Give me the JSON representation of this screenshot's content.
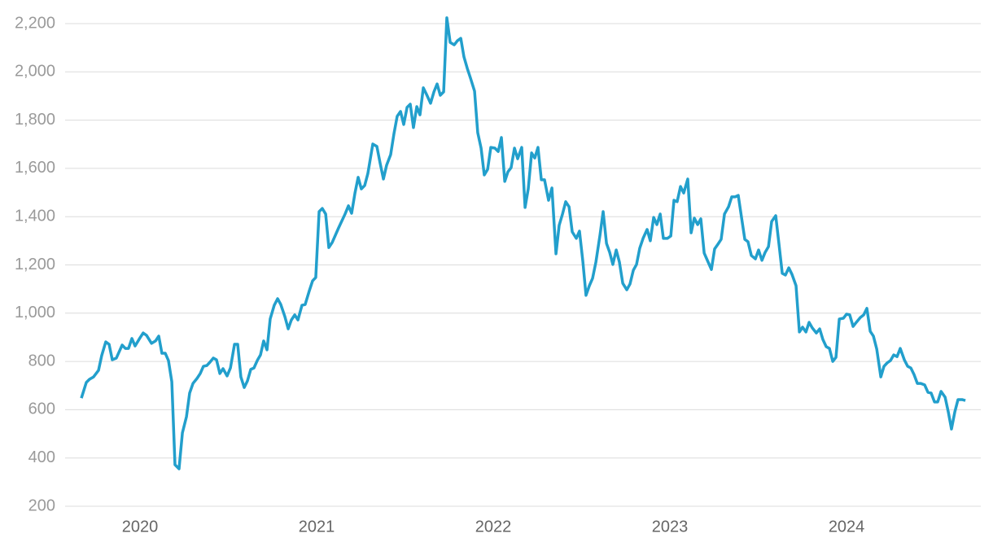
{
  "chart_data": {
    "type": "line",
    "color": "#229fcc",
    "grid": true,
    "xlim": [
      2019.576,
      2024.76
    ],
    "xticks": [
      2020,
      2021,
      2022,
      2023,
      2024
    ],
    "ylim": [
      200,
      2200
    ],
    "yticks": [
      200,
      400,
      600,
      800,
      {
        "value": 1000,
        "label": "1,000"
      },
      {
        "value": 1200,
        "label": "1,200"
      },
      {
        "value": 1400,
        "label": "1,400"
      },
      {
        "value": 1600,
        "label": "1,600"
      },
      {
        "value": 1800,
        "label": "1,800"
      },
      {
        "value": 2000,
        "label": "2,000"
      },
      {
        "value": 2200,
        "label": "2,200"
      }
    ],
    "x": [
      2019.668,
      2019.696,
      2019.714,
      2019.737,
      2019.765,
      2019.783,
      2019.806,
      2019.825,
      2019.843,
      2019.866,
      2019.899,
      2019.917,
      2019.935,
      2019.954,
      2019.972,
      2020.0,
      2020.018,
      2020.037,
      2020.065,
      2020.088,
      2020.106,
      2020.124,
      2020.143,
      2020.161,
      2020.18,
      2020.198,
      2020.221,
      2020.24,
      2020.263,
      2020.281,
      2020.3,
      2020.323,
      2020.341,
      2020.359,
      2020.378,
      2020.396,
      2020.415,
      2020.433,
      2020.452,
      2020.47,
      2020.493,
      2020.512,
      2020.535,
      2020.553,
      2020.571,
      2020.59,
      2020.608,
      2020.627,
      2020.645,
      2020.664,
      2020.682,
      2020.7,
      2020.719,
      2020.737,
      2020.76,
      2020.779,
      2020.797,
      2020.82,
      2020.839,
      2020.857,
      2020.876,
      2020.894,
      2020.917,
      2020.935,
      2020.959,
      2020.977,
      2020.995,
      2021.014,
      2021.032,
      2021.051,
      2021.069,
      2021.088,
      2021.124,
      2021.161,
      2021.18,
      2021.198,
      2021.217,
      2021.235,
      2021.253,
      2021.272,
      2021.29,
      2021.318,
      2021.341,
      2021.359,
      2021.378,
      2021.396,
      2021.419,
      2021.438,
      2021.456,
      2021.475,
      2021.493,
      2021.512,
      2021.53,
      2021.548,
      2021.567,
      2021.585,
      2021.604,
      2021.622,
      2021.645,
      2021.664,
      2021.682,
      2021.7,
      2021.719,
      2021.737,
      2021.756,
      2021.779,
      2021.797,
      2021.816,
      2021.834,
      2021.853,
      2021.871,
      2021.894,
      2021.912,
      2021.931,
      2021.949,
      2021.968,
      2021.986,
      2022.009,
      2022.028,
      2022.046,
      2022.065,
      2022.083,
      2022.101,
      2022.12,
      2022.138,
      2022.161,
      2022.18,
      2022.198,
      2022.217,
      2022.235,
      2022.253,
      2022.272,
      2022.29,
      2022.313,
      2022.332,
      2022.355,
      2022.373,
      2022.392,
      2022.41,
      2022.429,
      2022.447,
      2022.47,
      2022.488,
      2022.507,
      2022.525,
      2022.544,
      2022.562,
      2022.581,
      2022.604,
      2022.622,
      2022.641,
      2022.659,
      2022.677,
      2022.696,
      2022.714,
      2022.733,
      2022.756,
      2022.774,
      2022.793,
      2022.811,
      2022.829,
      2022.848,
      2022.871,
      2022.889,
      2022.908,
      2022.926,
      2022.945,
      2022.963,
      2022.986,
      2023.005,
      2023.023,
      2023.041,
      2023.06,
      2023.078,
      2023.101,
      2023.12,
      2023.138,
      2023.157,
      2023.175,
      2023.194,
      2023.212,
      2023.235,
      2023.253,
      2023.272,
      2023.29,
      2023.309,
      2023.332,
      2023.35,
      2023.369,
      2023.387,
      2023.406,
      2023.424,
      2023.442,
      2023.461,
      2023.484,
      2023.502,
      2023.521,
      2023.539,
      2023.558,
      2023.576,
      2023.599,
      2023.618,
      2023.636,
      2023.654,
      2023.673,
      2023.691,
      2023.714,
      2023.733,
      2023.751,
      2023.77,
      2023.788,
      2023.806,
      2023.829,
      2023.848,
      2023.866,
      2023.885,
      2023.903,
      2023.922,
      2023.94,
      2023.959,
      2023.982,
      2024.0,
      2024.018,
      2024.037,
      2024.055,
      2024.078,
      2024.097,
      2024.115,
      2024.134,
      2024.152,
      2024.171,
      2024.194,
      2024.212,
      2024.23,
      2024.249,
      2024.267,
      2024.286,
      2024.304,
      2024.327,
      2024.346,
      2024.364,
      2024.382,
      2024.401,
      2024.419,
      2024.442,
      2024.461,
      2024.479,
      2024.498,
      2024.516,
      2024.535,
      2024.558,
      2024.576,
      2024.594,
      2024.613,
      2024.631,
      2024.654,
      2024.673
    ],
    "values": [
      648,
      713,
      726,
      736,
      763,
      824,
      881,
      871,
      807,
      814,
      868,
      854,
      854,
      895,
      864,
      898,
      918,
      908,
      875,
      885,
      905,
      834,
      834,
      804,
      716,
      372,
      355,
      504,
      571,
      669,
      709,
      730,
      750,
      780,
      783,
      797,
      814,
      807,
      750,
      770,
      740,
      773,
      871,
      871,
      736,
      692,
      719,
      767,
      773,
      804,
      827,
      885,
      848,
      976,
      1033,
      1060,
      1036,
      986,
      935,
      972,
      993,
      972,
      1033,
      1036,
      1094,
      1134,
      1148,
      1421,
      1434,
      1411,
      1272,
      1293,
      1353,
      1411,
      1445,
      1414,
      1498,
      1563,
      1515,
      1529,
      1579,
      1701,
      1691,
      1623,
      1556,
      1613,
      1657,
      1745,
      1816,
      1836,
      1782,
      1853,
      1866,
      1769,
      1856,
      1822,
      1934,
      1907,
      1870,
      1917,
      1950,
      1903,
      1917,
      2224,
      2122,
      2112,
      2129,
      2139,
      2062,
      2014,
      1974,
      1920,
      1748,
      1684,
      1573,
      1596,
      1687,
      1684,
      1670,
      1728,
      1546,
      1586,
      1603,
      1684,
      1640,
      1687,
      1438,
      1515,
      1664,
      1643,
      1687,
      1553,
      1553,
      1468,
      1519,
      1246,
      1364,
      1411,
      1462,
      1441,
      1337,
      1310,
      1340,
      1215,
      1074,
      1114,
      1144,
      1212,
      1323,
      1421,
      1289,
      1252,
      1202,
      1262,
      1212,
      1124,
      1097,
      1121,
      1178,
      1202,
      1269,
      1310,
      1347,
      1300,
      1397,
      1367,
      1411,
      1310,
      1310,
      1320,
      1468,
      1462,
      1525,
      1498,
      1556,
      1333,
      1394,
      1367,
      1391,
      1249,
      1219,
      1181,
      1266,
      1286,
      1306,
      1411,
      1441,
      1482,
      1482,
      1488,
      1394,
      1306,
      1296,
      1239,
      1225,
      1262,
      1219,
      1252,
      1276,
      1380,
      1404,
      1283,
      1165,
      1158,
      1188,
      1161,
      1114,
      922,
      942,
      922,
      962,
      939,
      918,
      935,
      891,
      861,
      854,
      800,
      817,
      976,
      979,
      996,
      993,
      945,
      962,
      982,
      993,
      1020,
      925,
      905,
      851,
      736,
      780,
      794,
      804,
      827,
      820,
      854,
      807,
      780,
      773,
      746,
      709,
      709,
      703,
      672,
      669,
      632,
      632,
      676,
      652,
      591,
      520,
      591,
      642,
      642,
      638
    ]
  }
}
